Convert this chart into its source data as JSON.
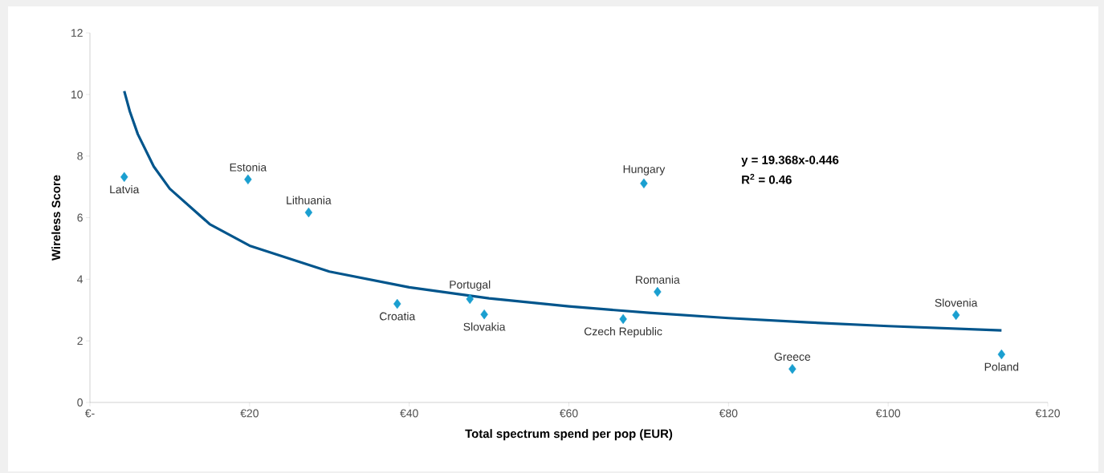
{
  "chart_data": {
    "type": "scatter",
    "xlabel": "Total spectrum spend per pop (EUR)",
    "ylabel": "Wireless Score",
    "xlim": [
      0,
      120
    ],
    "ylim": [
      0,
      12
    ],
    "xticks": [
      {
        "value": 0,
        "label": "€-"
      },
      {
        "value": 20,
        "label": "€20"
      },
      {
        "value": 40,
        "label": "€40"
      },
      {
        "value": 60,
        "label": "€60"
      },
      {
        "value": 80,
        "label": "€80"
      },
      {
        "value": 100,
        "label": "€100"
      },
      {
        "value": 120,
        "label": "€120"
      }
    ],
    "yticks": [
      0,
      2,
      4,
      6,
      8,
      10,
      12
    ],
    "series": [
      {
        "color": "#1a9fd0",
        "marker": "diamond",
        "x": [
          4.3,
          19.8,
          27.4,
          38.5,
          47.6,
          49.4,
          66.8,
          69.4,
          71.1,
          88.0,
          108.5,
          114.2
        ],
        "values": [
          7.32,
          7.24,
          6.17,
          3.2,
          3.36,
          2.86,
          2.71,
          7.11,
          3.59,
          1.09,
          2.84,
          1.56
        ]
      },
      {
        "type": "line",
        "color": "#00558c",
        "marker": "none",
        "line_style": "solid",
        "x": [
          4.3,
          5,
          6,
          8,
          10,
          15,
          20,
          30,
          40,
          50,
          60,
          70,
          80,
          90,
          100,
          114.2
        ],
        "values": [
          10.11,
          9.45,
          8.71,
          7.66,
          6.94,
          5.79,
          5.09,
          4.25,
          3.74,
          3.38,
          3.12,
          2.91,
          2.74,
          2.6,
          2.48,
          2.34
        ]
      }
    ],
    "annotations": [
      {
        "text": "Latvia",
        "x": 4.3,
        "y": 7.32
      },
      {
        "text": "Estonia",
        "x": 19.8,
        "y": 7.24
      },
      {
        "text": "Lithuania",
        "x": 27.4,
        "y": 6.17
      },
      {
        "text": "Croatia",
        "x": 38.5,
        "y": 3.2
      },
      {
        "text": "Portugal",
        "x": 47.6,
        "y": 3.36
      },
      {
        "text": "Slovakia",
        "x": 49.4,
        "y": 2.86
      },
      {
        "text": "Czech Republic",
        "x": 66.8,
        "y": 2.71
      },
      {
        "text": "Hungary",
        "x": 69.4,
        "y": 7.11
      },
      {
        "text": "Romania",
        "x": 71.1,
        "y": 3.59
      },
      {
        "text": "Greece",
        "x": 88.0,
        "y": 1.09
      },
      {
        "text": "Slovenia",
        "x": 108.5,
        "y": 2.84
      },
      {
        "text": "Poland",
        "x": 114.2,
        "y": 1.56
      },
      "**y = 19.368x-0.446**",
      "**R$^{2}$ = 0.46**"
    ]
  }
}
